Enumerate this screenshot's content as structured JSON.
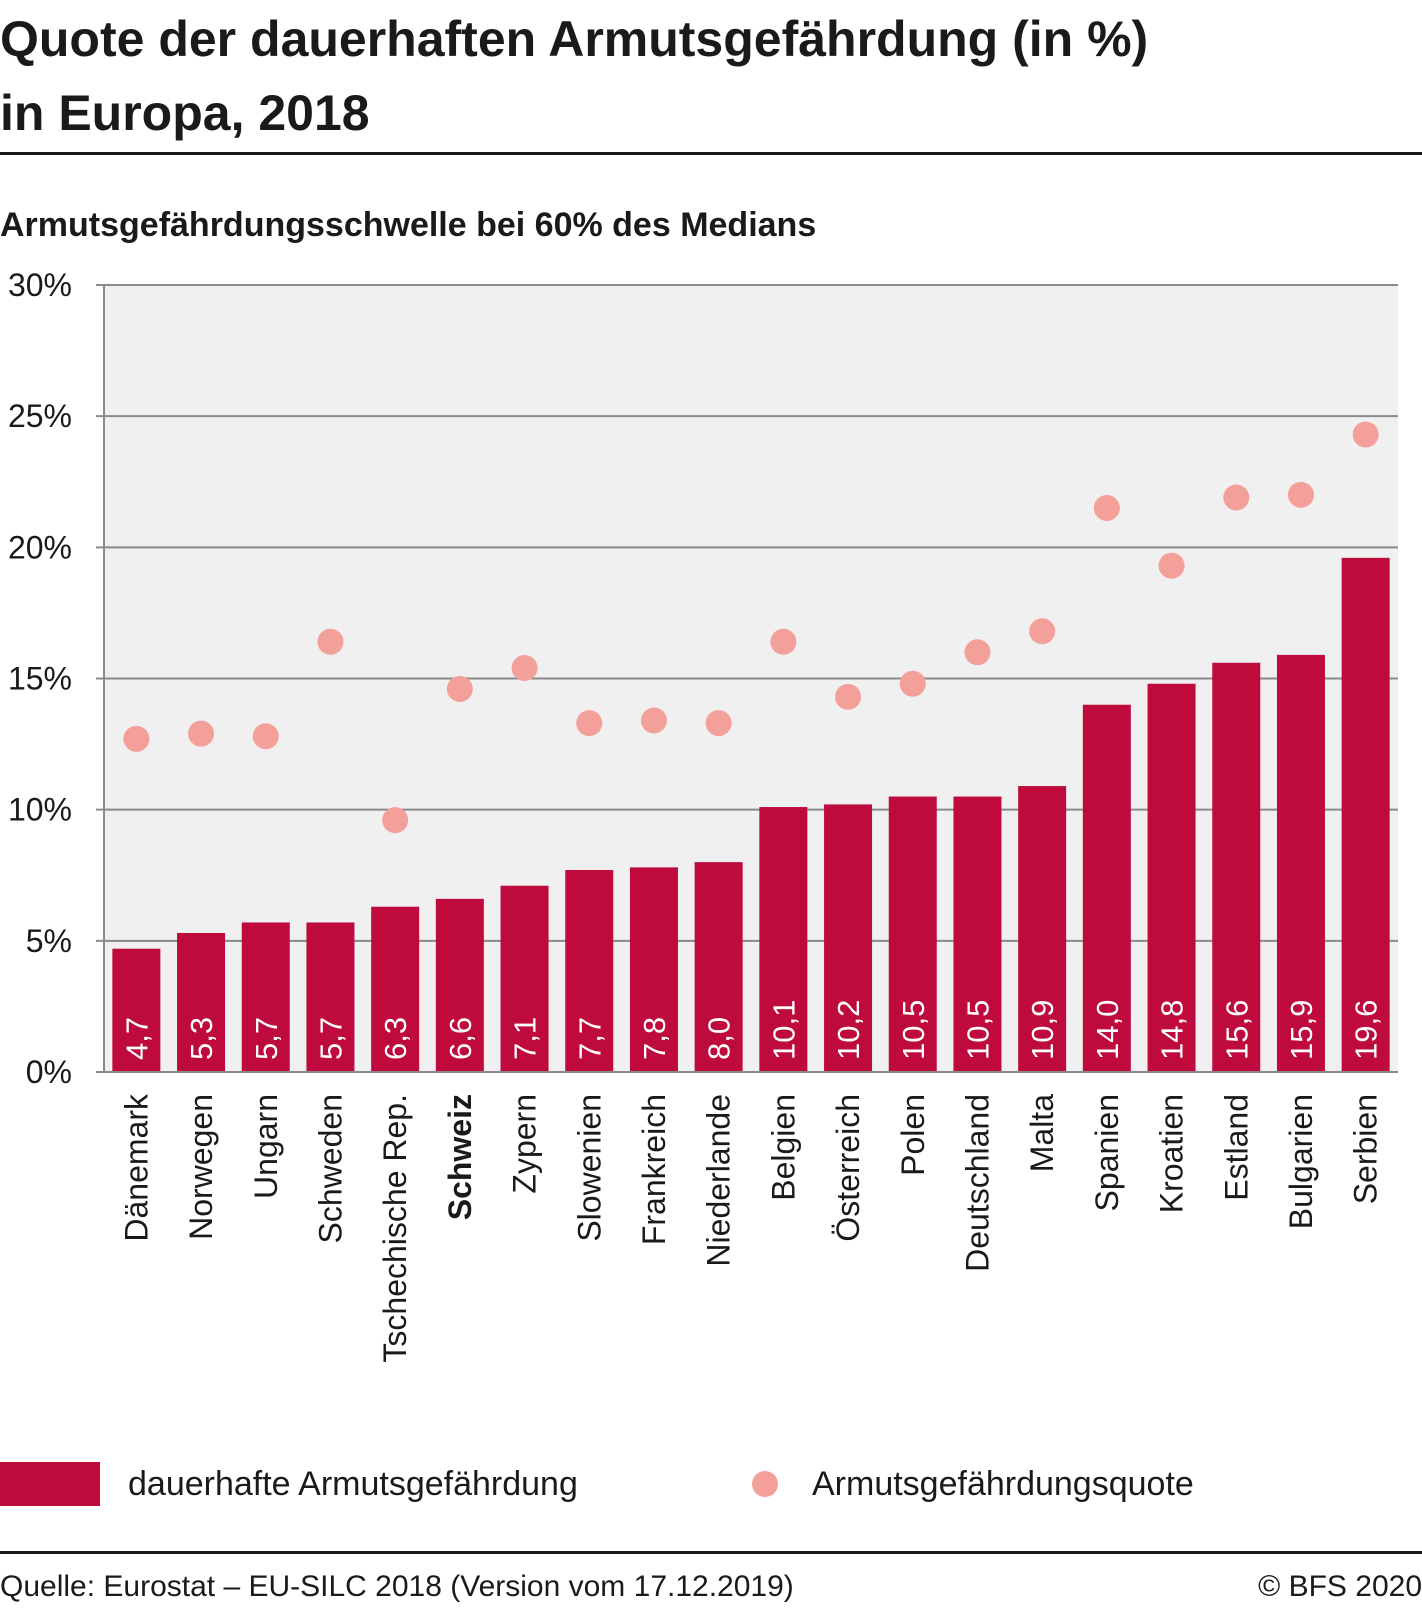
{
  "title_lines": [
    "Quote der dauerhaften Armutsgefährdung (in %)",
    "in Europa, 2018"
  ],
  "subtitle": "Armutsgefährdungsschwelle bei 60% des Medians",
  "chart_data": {
    "type": "bar",
    "categories": [
      "Dänemark",
      "Norwegen",
      "Ungarn",
      "Schweden",
      "Tschechische Rep.",
      "Schweiz",
      "Zypern",
      "Slowenien",
      "Frankreich",
      "Niederlande",
      "Belgien",
      "Österreich",
      "Polen",
      "Deutschland",
      "Malta",
      "Spanien",
      "Kroatien",
      "Estland",
      "Bulgarien",
      "Serbien"
    ],
    "highlighted_category": "Schweiz",
    "series": [
      {
        "name": "dauerhafte Armutsgefährdung",
        "type": "bar",
        "color": "#be0a3c",
        "values": [
          4.7,
          5.3,
          5.7,
          5.7,
          6.3,
          6.6,
          7.1,
          7.7,
          7.8,
          8.0,
          10.1,
          10.2,
          10.5,
          10.5,
          10.9,
          14.0,
          14.8,
          15.6,
          15.9,
          19.6
        ],
        "labels": [
          "4,7",
          "5,3",
          "5,7",
          "5,7",
          "6,3",
          "6,6",
          "7,1",
          "7,7",
          "7,8",
          "8,0",
          "10,1",
          "10,2",
          "10,5",
          "10,5",
          "10,9",
          "14,0",
          "14,8",
          "15,6",
          "15,9",
          "19,6"
        ]
      },
      {
        "name": "Armutsgefährdungsquote",
        "type": "scatter",
        "color": "#f4a09a",
        "values": [
          12.7,
          12.9,
          12.8,
          16.4,
          9.6,
          14.6,
          15.4,
          13.3,
          13.4,
          13.3,
          16.4,
          14.3,
          14.8,
          16.0,
          16.8,
          21.5,
          19.3,
          21.9,
          22.0,
          24.3
        ]
      }
    ],
    "ylim": [
      0,
      30
    ],
    "yticks": [
      0,
      5,
      10,
      15,
      20,
      25,
      30
    ],
    "ytick_labels": [
      "0%",
      "5%",
      "10%",
      "15%",
      "20%",
      "25%",
      "30%"
    ],
    "grid": true,
    "legend_position": "bottom",
    "plot_background": "#f0f0f0"
  },
  "footer": {
    "source": "Quelle: Eurostat – EU-SILC 2018 (Version vom 17.12.2019)",
    "copyright": "© BFS 2020"
  }
}
